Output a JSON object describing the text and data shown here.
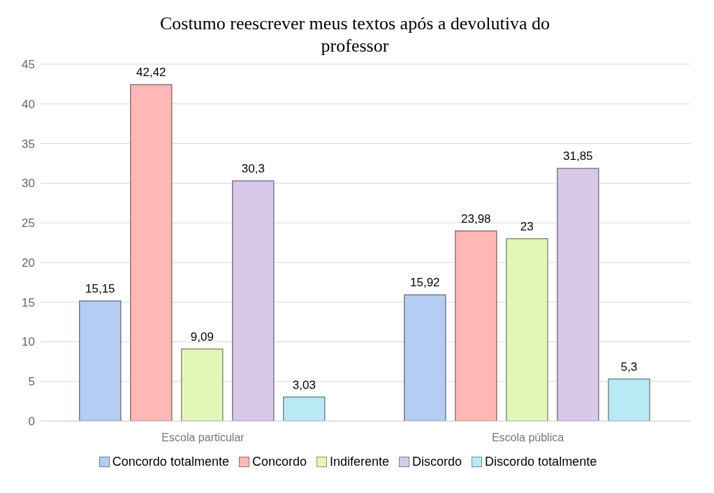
{
  "chart_data": {
    "type": "bar",
    "title": "Costumo reescrever meus textos após a devolutiva do professor",
    "categories": [
      "Escola particular",
      "Escola pública"
    ],
    "series": [
      {
        "name": "Concordo totalmente",
        "color": "#b4cdf2",
        "values": [
          15.15,
          15.92
        ],
        "value_labels": [
          "15,15",
          "15,92"
        ]
      },
      {
        "name": "Concordo",
        "color": "#ffb8b5",
        "values": [
          42.42,
          23.98
        ],
        "value_labels": [
          "42,42",
          "23,98"
        ]
      },
      {
        "name": "Indiferente",
        "color": "#e2f7b8",
        "values": [
          9.09,
          23
        ],
        "value_labels": [
          "9,09",
          "23"
        ]
      },
      {
        "name": "Discordo",
        "color": "#d8c8ea",
        "values": [
          30.3,
          31.85
        ],
        "value_labels": [
          "30,3",
          "31,85"
        ]
      },
      {
        "name": "Discordo totalmente",
        "color": "#b8eaf5",
        "values": [
          3.03,
          5.3
        ],
        "value_labels": [
          "3,03",
          "5,3"
        ]
      }
    ],
    "ylim": [
      0,
      45
    ],
    "yticks": [
      0,
      5,
      10,
      15,
      20,
      25,
      30,
      35,
      40,
      45
    ],
    "grid": "y",
    "legend": "bottom"
  }
}
